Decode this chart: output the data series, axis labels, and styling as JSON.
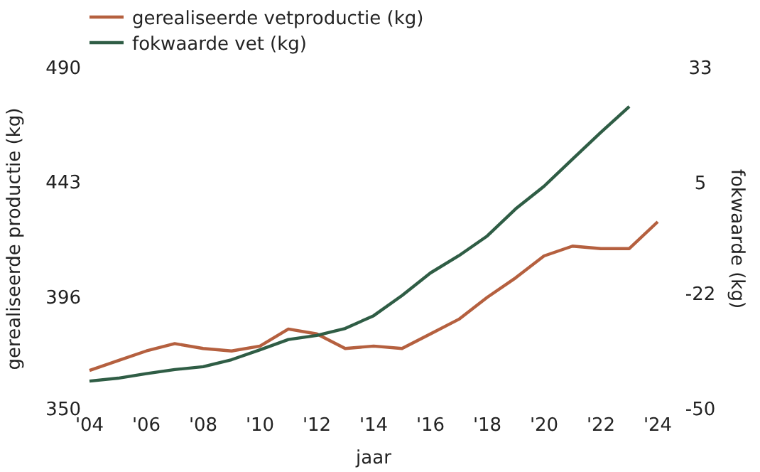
{
  "chart_data": {
    "type": "line",
    "xlabel": "jaar",
    "ylabel": "gerealiseerde productie (kg)",
    "y2label": "fokwaarde (kg)",
    "x": [
      2004,
      2005,
      2006,
      2007,
      2008,
      2009,
      2010,
      2011,
      2012,
      2013,
      2014,
      2015,
      2016,
      2017,
      2018,
      2019,
      2020,
      2021,
      2022,
      2023,
      2024
    ],
    "series": [
      {
        "name": "gerealiseerde vetproductie (kg)",
        "color": "#b5603f",
        "values": [
          366,
          370,
          374,
          377,
          375,
          374,
          376,
          383,
          381,
          375,
          376,
          375,
          381,
          387,
          396,
          404,
          413,
          417,
          416,
          416,
          427
        ]
      },
      {
        "name": "fokwaarde vet (kg)",
        "color": "#2f5d45",
        "axis": "y2",
        "values": [
          -43.1,
          -42.4,
          -41.3,
          -40.3,
          -39.6,
          -37.9,
          -35.5,
          -33,
          -32,
          -30.3,
          -27.2,
          -22.3,
          -16.8,
          -12.6,
          -7.8,
          -1.2,
          4.3,
          10.9,
          17.4,
          23.7,
          null
        ]
      }
    ],
    "xlim": [
      2004,
      2024
    ],
    "xticks": [
      {
        "value": 2004,
        "label": "'04"
      },
      {
        "value": 2006,
        "label": "'06"
      },
      {
        "value": 2008,
        "label": "'08"
      },
      {
        "value": 2010,
        "label": "'10"
      },
      {
        "value": 2012,
        "label": "'12"
      },
      {
        "value": 2014,
        "label": "'14"
      },
      {
        "value": 2016,
        "label": "'16"
      },
      {
        "value": 2018,
        "label": "'18"
      },
      {
        "value": 2020,
        "label": "'20"
      },
      {
        "value": 2022,
        "label": "'22"
      },
      {
        "value": 2024,
        "label": "'24"
      }
    ],
    "ylim": [
      350,
      490
    ],
    "yticks": [
      350,
      396,
      443,
      490
    ],
    "y2lim": [
      -50,
      33
    ],
    "y2ticks": [
      -50,
      -22,
      5,
      33
    ],
    "legend": "top left",
    "marker": "none",
    "line_style": "solid",
    "grid": false
  }
}
